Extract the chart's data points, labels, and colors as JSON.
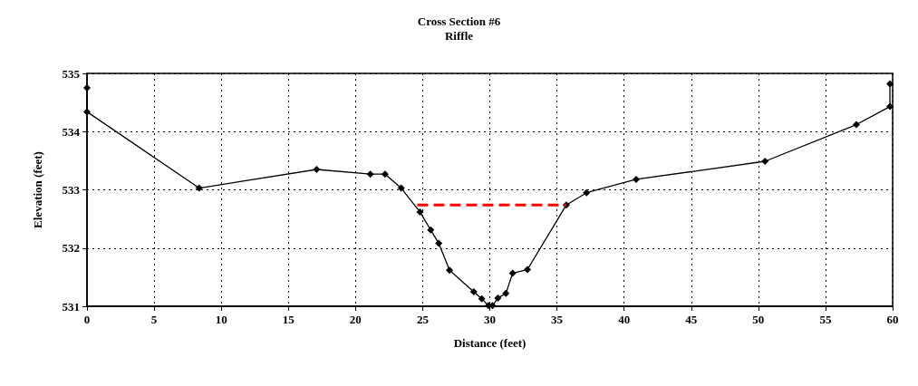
{
  "chart_data": {
    "type": "line",
    "title": "Cross Section #6",
    "subtitle": "Riffle",
    "xlabel": "Distance (feet)",
    "ylabel": "Elevation (feet)",
    "xlim": [
      0,
      60
    ],
    "xticks": [
      0,
      5,
      10,
      15,
      20,
      25,
      30,
      35,
      40,
      45,
      50,
      55,
      60
    ],
    "ylim": [
      531,
      535
    ],
    "yticks": [
      531,
      532,
      533,
      534,
      535
    ],
    "grid": true,
    "series": [
      {
        "color": "#000000",
        "marker": "diamond",
        "line_style": "solid",
        "x": [
          0,
          0,
          8.35,
          17.1,
          21.1,
          22.2,
          23.4,
          24.8,
          25.6,
          26.2,
          27.0,
          28.8,
          29.4,
          29.9,
          30.2,
          30.6,
          31.2,
          31.7,
          32.8,
          35.7,
          37.2,
          40.9,
          50.5,
          57.3,
          59.8,
          59.8
        ],
        "values": [
          534.75,
          534.34,
          533.03,
          533.35,
          533.27,
          533.27,
          533.03,
          532.62,
          532.31,
          532.08,
          531.62,
          531.25,
          531.13,
          531.01,
          531.01,
          531.14,
          531.22,
          531.57,
          531.63,
          532.74,
          532.95,
          533.18,
          533.49,
          534.12,
          534.43,
          534.82
        ]
      },
      {
        "color": "#ff0000",
        "marker": "none",
        "line_style": "dashed",
        "x": [
          24.6,
          35.7
        ],
        "values": [
          532.74,
          532.74
        ]
      }
    ]
  }
}
